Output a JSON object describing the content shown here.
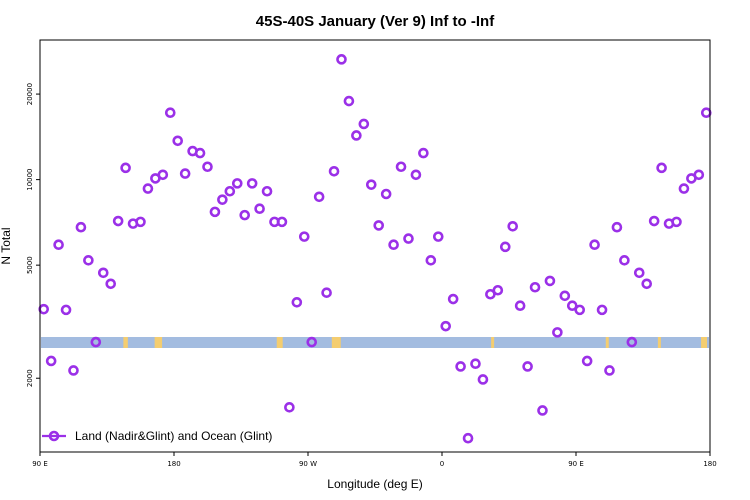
{
  "chart_data": {
    "type": "scatter",
    "title": "45S-40S January (Ver 9)   Inf to -Inf",
    "xlabel": "Longitude (deg E)",
    "ylabel": "N Total",
    "x_axis": {
      "ticks": [
        {
          "value": 90,
          "label": "90 E"
        },
        {
          "value": 180,
          "label": "180"
        },
        {
          "value": 270,
          "label": "90 W"
        },
        {
          "value": 360,
          "label": "0"
        },
        {
          "value": 450,
          "label": "90 E"
        },
        {
          "value": 540,
          "label": "180"
        }
      ],
      "xlim": [
        90,
        540
      ]
    },
    "y_axis": {
      "scale": "log",
      "ticks": [
        {
          "value": 2000,
          "label": "2000"
        },
        {
          "value": 5000,
          "label": "5000"
        },
        {
          "value": 10000,
          "label": "10000"
        },
        {
          "value": 20000,
          "label": "20000"
        }
      ],
      "ylim": [
        1100,
        31000
      ]
    },
    "grid": false,
    "legend": {
      "position": "bottom-left",
      "entries": [
        {
          "name": "Land (Nadir&Glint) and Ocean (Glint)",
          "color": "#9b30e8"
        }
      ]
    },
    "band_colors": {
      "ocean": "#a3bce0",
      "land": "#f4cd70"
    },
    "series": [
      {
        "name": "Land (Nadir&Glint) and Ocean (Glint)",
        "color": "#9b30e8",
        "points": [
          [
            92.5,
            3500
          ],
          [
            97.5,
            2300
          ],
          [
            102.5,
            5900
          ],
          [
            107.5,
            3480
          ],
          [
            112.5,
            2130
          ],
          [
            117.5,
            6800
          ],
          [
            122.5,
            5200
          ],
          [
            127.5,
            2680
          ],
          [
            132.5,
            4700
          ],
          [
            137.5,
            4300
          ],
          [
            142.5,
            7150
          ],
          [
            147.5,
            11000
          ],
          [
            152.5,
            7000
          ],
          [
            157.5,
            7100
          ],
          [
            162.5,
            9300
          ],
          [
            167.5,
            10100
          ],
          [
            172.5,
            10400
          ],
          [
            177.5,
            17200
          ],
          [
            182.5,
            13700
          ],
          [
            187.5,
            10500
          ],
          [
            192.5,
            12600
          ],
          [
            197.5,
            12400
          ],
          [
            202.5,
            11100
          ],
          [
            207.5,
            7700
          ],
          [
            212.5,
            8500
          ],
          [
            217.5,
            9100
          ],
          [
            222.5,
            9700
          ],
          [
            227.5,
            7500
          ],
          [
            232.5,
            9700
          ],
          [
            237.5,
            7900
          ],
          [
            242.5,
            9100
          ],
          [
            247.5,
            7100
          ],
          [
            252.5,
            7100
          ],
          [
            257.5,
            1580
          ],
          [
            262.5,
            3700
          ],
          [
            267.5,
            6300
          ],
          [
            272.5,
            2680
          ],
          [
            277.5,
            8700
          ],
          [
            282.5,
            4000
          ],
          [
            287.5,
            10700
          ],
          [
            292.5,
            26500
          ],
          [
            297.5,
            18900
          ],
          [
            302.5,
            14300
          ],
          [
            307.5,
            15700
          ],
          [
            312.5,
            9600
          ],
          [
            317.5,
            6900
          ],
          [
            322.5,
            8900
          ],
          [
            327.5,
            5900
          ],
          [
            332.5,
            11100
          ],
          [
            337.5,
            6200
          ],
          [
            342.5,
            10400
          ],
          [
            347.5,
            12400
          ],
          [
            352.5,
            5200
          ],
          [
            357.5,
            6300
          ],
          [
            362.5,
            3050
          ],
          [
            367.5,
            3800
          ],
          [
            372.5,
            2200
          ],
          [
            377.5,
            1230
          ],
          [
            382.5,
            2250
          ],
          [
            387.5,
            1980
          ],
          [
            392.5,
            3950
          ],
          [
            397.5,
            4080
          ],
          [
            402.5,
            5800
          ],
          [
            407.5,
            6850
          ],
          [
            412.5,
            3600
          ],
          [
            417.5,
            2200
          ],
          [
            422.5,
            4180
          ],
          [
            427.5,
            1540
          ],
          [
            432.5,
            4400
          ],
          [
            437.5,
            2900
          ],
          [
            442.5,
            3900
          ],
          [
            447.5,
            3600
          ],
          [
            452.5,
            3480
          ],
          [
            457.5,
            2300
          ],
          [
            462.5,
            5900
          ],
          [
            467.5,
            3480
          ],
          [
            472.5,
            2130
          ],
          [
            477.5,
            6800
          ],
          [
            482.5,
            5200
          ],
          [
            487.5,
            2680
          ],
          [
            492.5,
            4700
          ],
          [
            497.5,
            4300
          ],
          [
            502.5,
            7150
          ],
          [
            507.5,
            11000
          ],
          [
            512.5,
            7000
          ],
          [
            517.5,
            7100
          ],
          [
            522.5,
            9300
          ],
          [
            527.5,
            10100
          ],
          [
            532.5,
            10400
          ],
          [
            537.5,
            17200
          ]
        ]
      }
    ]
  }
}
